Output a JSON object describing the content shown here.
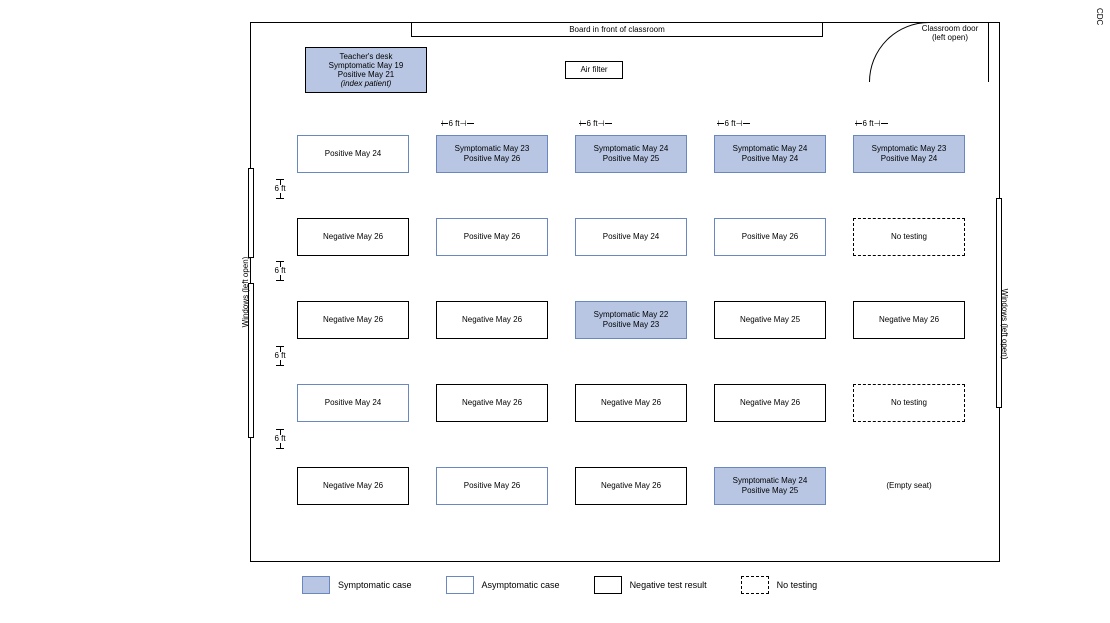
{
  "source_credit": "CDC",
  "colors": {
    "symptomatic_fill": "#b8c6e3",
    "symptomatic_border": "#6a87bf",
    "asymptomatic_border": "#6a87bf",
    "negative_border": "#000000",
    "background": "#ffffff"
  },
  "room": {
    "board_label": "Board in front of classroom",
    "door_label_l1": "Classroom door",
    "door_label_l2": "(left open)",
    "air_filter_label": "Air filter",
    "window_left_label": "Windows (left open)",
    "window_right_label": "Windows (left open)",
    "six_ft_label": "6 ft"
  },
  "teacher_desk": {
    "line1": "Teacher's desk",
    "line2": "Symptomatic  May 19",
    "line3": "Positive  May 21",
    "line4": "(index patient)"
  },
  "desks": [
    [
      {
        "type": "asymptomatic",
        "line1": "Positive  May 24",
        "line2": ""
      },
      {
        "type": "symptomatic",
        "line1": "Symptomatic  May 23",
        "line2": "Positive  May 26"
      },
      {
        "type": "symptomatic",
        "line1": "Symptomatic  May 24",
        "line2": "Positive  May 25"
      },
      {
        "type": "symptomatic",
        "line1": "Symptomatic  May 24",
        "line2": "Positive  May 24"
      },
      {
        "type": "symptomatic",
        "line1": "Symptomatic  May 23",
        "line2": "Positive  May 24"
      }
    ],
    [
      {
        "type": "negative",
        "line1": "Negative  May 26",
        "line2": ""
      },
      {
        "type": "asymptomatic",
        "line1": "Positive  May 26",
        "line2": ""
      },
      {
        "type": "asymptomatic",
        "line1": "Positive  May 24",
        "line2": ""
      },
      {
        "type": "asymptomatic",
        "line1": "Positive  May 26",
        "line2": ""
      },
      {
        "type": "notest",
        "line1": "No testing",
        "line2": ""
      }
    ],
    [
      {
        "type": "negative",
        "line1": "Negative  May 26",
        "line2": ""
      },
      {
        "type": "negative",
        "line1": "Negative  May 26",
        "line2": ""
      },
      {
        "type": "symptomatic",
        "line1": "Symptomatic  May 22",
        "line2": "Positive  May 23"
      },
      {
        "type": "negative",
        "line1": "Negative  May 25",
        "line2": ""
      },
      {
        "type": "negative",
        "line1": "Negative  May 26",
        "line2": ""
      }
    ],
    [
      {
        "type": "asymptomatic",
        "line1": "Positive  May 24",
        "line2": ""
      },
      {
        "type": "negative",
        "line1": "Negative  May 26",
        "line2": ""
      },
      {
        "type": "negative",
        "line1": "Negative  May 26",
        "line2": ""
      },
      {
        "type": "negative",
        "line1": "Negative  May 26",
        "line2": ""
      },
      {
        "type": "notest",
        "line1": "No testing",
        "line2": ""
      }
    ],
    [
      {
        "type": "negative",
        "line1": "Negative  May 26",
        "line2": ""
      },
      {
        "type": "asymptomatic",
        "line1": "Positive  May 26",
        "line2": ""
      },
      {
        "type": "negative",
        "line1": "Negative  May 26",
        "line2": ""
      },
      {
        "type": "symptomatic",
        "line1": "Symptomatic  May 24",
        "line2": "Positive  May 25"
      },
      {
        "type": "empty",
        "line1": "(Empty seat)",
        "line2": ""
      }
    ]
  ],
  "legend": {
    "symptomatic": "Symptomatic case",
    "asymptomatic": "Asymptomatic case",
    "negative": "Negative test result",
    "notest": "No testing"
  }
}
